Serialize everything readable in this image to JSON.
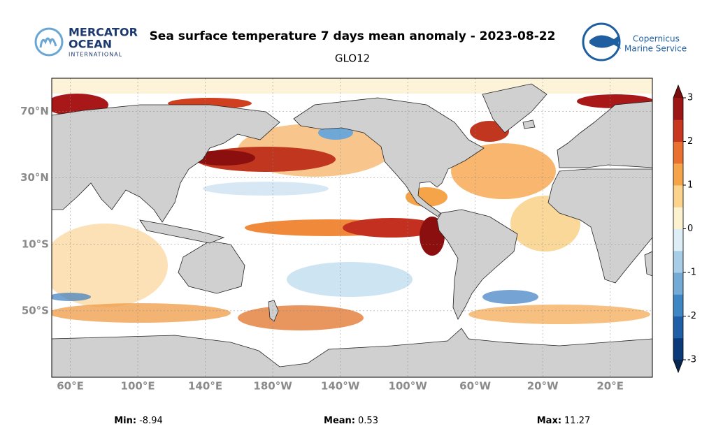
{
  "header": {
    "title": "Sea surface temperature 7 days mean anomaly - 2023-08-22",
    "subtitle": "GLO12"
  },
  "logos": {
    "left": [
      "MERCATOR",
      "OCEAN",
      "INTERNATIONAL"
    ],
    "right": [
      "Copernicus",
      "Marine Service"
    ]
  },
  "map": {
    "xlim": [
      49,
      405
    ],
    "ylim": [
      -90,
      90
    ],
    "xticks": [
      {
        "value": 60,
        "label": "60°E"
      },
      {
        "value": 100,
        "label": "100°E"
      },
      {
        "value": 140,
        "label": "140°E"
      },
      {
        "value": 180,
        "label": "180°W"
      },
      {
        "value": 220,
        "label": "140°W"
      },
      {
        "value": 260,
        "label": "100°W"
      },
      {
        "value": 300,
        "label": "60°W"
      },
      {
        "value": 340,
        "label": "20°W"
      },
      {
        "value": 380,
        "label": "20°E"
      }
    ],
    "yticks": [
      {
        "value": 70,
        "label": "70°N"
      },
      {
        "value": 30,
        "label": "30°N"
      },
      {
        "value": -10,
        "label": "10°S"
      },
      {
        "value": -50,
        "label": "50°S"
      }
    ]
  },
  "colorbar": {
    "lim": [
      -3,
      3
    ],
    "ticks": [
      3,
      2,
      1,
      0,
      -1,
      -2,
      -3
    ]
  },
  "stats": [
    {
      "label": "Min:",
      "value": -8.94
    },
    {
      "label": "Mean:",
      "value": 0.53
    },
    {
      "label": "Max:",
      "value": 11.27
    }
  ]
}
